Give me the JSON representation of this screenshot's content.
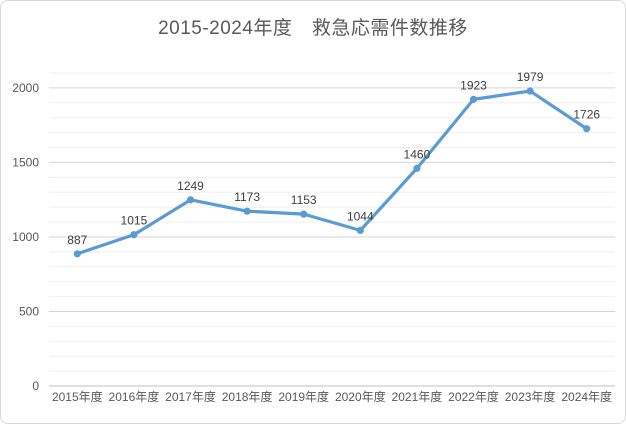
{
  "chart_data": {
    "type": "line",
    "title": "2015-2024年度　救急応需件数推移",
    "categories": [
      "2015年度",
      "2016年度",
      "2017年度",
      "2018年度",
      "2019年度",
      "2020年度",
      "2021年度",
      "2022年度",
      "2023年度",
      "2024年度"
    ],
    "values": [
      887,
      1015,
      1249,
      1173,
      1153,
      1044,
      1460,
      1923,
      1979,
      1726
    ],
    "data_labels": [
      "887",
      "1015",
      "1249",
      "1173",
      "1153",
      "1044",
      "1460",
      "1923",
      "1979",
      "1726"
    ],
    "xlabel": "",
    "ylabel": "",
    "ylim": [
      0,
      2100
    ],
    "yticks": [
      0,
      500,
      1000,
      1500,
      2000
    ],
    "minor_unit": 100,
    "grid": "major-and-minor-horizontal",
    "legend": "none",
    "colors": {
      "line": "#5B9BD5",
      "marker": "#5B9BD5",
      "major_grid": "#d5d5d5",
      "minor_grid": "#efefef",
      "axis_line": "#c0c0c0",
      "axis_text": "#595959",
      "data_label_text": "#404040",
      "title_text": "#595959",
      "frame_border": "#d9d9d9"
    }
  }
}
